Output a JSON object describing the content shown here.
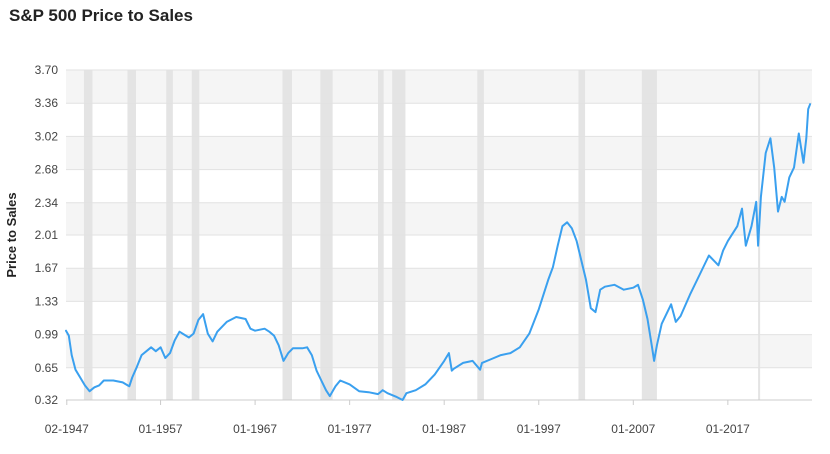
{
  "chart_data": {
    "type": "line",
    "title": "S&P 500 Price to Sales",
    "ylabel": "Price to Sales",
    "xlabel": "",
    "ylim": [
      0.32,
      3.7
    ],
    "y_ticks": [
      "0.32",
      "0.65",
      "0.99",
      "1.33",
      "1.67",
      "2.01",
      "2.34",
      "2.68",
      "3.02",
      "3.36",
      "3.70"
    ],
    "x_ticks": [
      "02-1947",
      "01-1957",
      "01-1967",
      "01-1977",
      "01-1987",
      "01-1997",
      "01-2007",
      "01-2017"
    ],
    "xlim": [
      1947.0,
      2025.9
    ],
    "recessions": [
      [
        1948.9,
        1949.8
      ],
      [
        1953.5,
        1954.4
      ],
      [
        1957.6,
        1958.3
      ],
      [
        1960.3,
        1961.1
      ],
      [
        1969.9,
        1970.9
      ],
      [
        1973.9,
        1975.2
      ],
      [
        1980.0,
        1980.6
      ],
      [
        1981.5,
        1982.9
      ],
      [
        1990.5,
        1991.2
      ],
      [
        2001.2,
        2001.9
      ],
      [
        2007.9,
        2009.5
      ],
      [
        2020.2,
        2020.4
      ]
    ],
    "series": [
      {
        "color": "#3aa0ef",
        "x": [
          1947.0,
          1947.3,
          1947.6,
          1948.0,
          1948.5,
          1949.0,
          1949.5,
          1950.0,
          1950.5,
          1951.0,
          1952.0,
          1953.0,
          1953.7,
          1954.0,
          1954.5,
          1955.0,
          1955.5,
          1956.0,
          1956.5,
          1957.0,
          1957.5,
          1958.0,
          1958.5,
          1959.0,
          1959.5,
          1960.0,
          1960.5,
          1961.0,
          1961.5,
          1962.0,
          1962.5,
          1963.0,
          1964.0,
          1965.0,
          1966.0,
          1966.5,
          1967.0,
          1968.0,
          1968.5,
          1969.0,
          1969.5,
          1970.0,
          1970.5,
          1971.0,
          1972.0,
          1972.5,
          1973.0,
          1973.5,
          1974.0,
          1974.5,
          1974.9,
          1975.5,
          1976.0,
          1977.0,
          1978.0,
          1979.0,
          1980.0,
          1980.5,
          1981.0,
          1982.0,
          1982.6,
          1983.0,
          1984.0,
          1985.0,
          1986.0,
          1987.0,
          1987.5,
          1987.8,
          1988.0,
          1989.0,
          1990.0,
          1990.8,
          1991.0,
          1992.0,
          1993.0,
          1994.0,
          1995.0,
          1996.0,
          1997.0,
          1998.0,
          1998.5,
          1999.0,
          1999.5,
          2000.0,
          2000.5,
          2001.0,
          2001.5,
          2002.0,
          2002.5,
          2003.0,
          2003.5,
          2004.0,
          2005.0,
          2006.0,
          2007.0,
          2007.5,
          2008.0,
          2008.5,
          2009.0,
          2009.2,
          2009.5,
          2010.0,
          2010.5,
          2011.0,
          2011.5,
          2012.0,
          2013.0,
          2014.0,
          2015.0,
          2015.5,
          2016.0,
          2016.5,
          2017.0,
          2018.0,
          2018.5,
          2018.9,
          2019.5,
          2020.0,
          2020.2,
          2020.5,
          2021.0,
          2021.5,
          2021.9,
          2022.3,
          2022.7,
          2023.0,
          2023.5,
          2024.0,
          2024.5,
          2025.0,
          2025.3,
          2025.5,
          2025.7
        ],
        "values": [
          1.03,
          0.98,
          0.78,
          0.63,
          0.55,
          0.47,
          0.41,
          0.45,
          0.47,
          0.52,
          0.52,
          0.5,
          0.46,
          0.55,
          0.66,
          0.78,
          0.82,
          0.86,
          0.82,
          0.86,
          0.75,
          0.8,
          0.93,
          1.02,
          0.99,
          0.96,
          1.0,
          1.14,
          1.2,
          1.0,
          0.92,
          1.02,
          1.12,
          1.17,
          1.15,
          1.05,
          1.03,
          1.05,
          1.02,
          0.98,
          0.88,
          0.72,
          0.8,
          0.85,
          0.85,
          0.86,
          0.78,
          0.62,
          0.52,
          0.42,
          0.36,
          0.46,
          0.52,
          0.48,
          0.41,
          0.4,
          0.38,
          0.42,
          0.39,
          0.35,
          0.32,
          0.39,
          0.42,
          0.48,
          0.58,
          0.72,
          0.8,
          0.62,
          0.64,
          0.7,
          0.72,
          0.63,
          0.7,
          0.74,
          0.78,
          0.8,
          0.86,
          1.0,
          1.25,
          1.55,
          1.68,
          1.9,
          2.1,
          2.14,
          2.08,
          1.95,
          1.75,
          1.55,
          1.26,
          1.22,
          1.45,
          1.48,
          1.5,
          1.45,
          1.47,
          1.5,
          1.35,
          1.15,
          0.85,
          0.72,
          0.88,
          1.1,
          1.2,
          1.3,
          1.12,
          1.18,
          1.4,
          1.6,
          1.8,
          1.75,
          1.7,
          1.85,
          1.95,
          2.1,
          2.28,
          1.9,
          2.1,
          2.35,
          1.9,
          2.4,
          2.85,
          3.0,
          2.7,
          2.25,
          2.4,
          2.35,
          2.6,
          2.7,
          3.05,
          2.75,
          3.0,
          3.3,
          3.35
        ]
      }
    ]
  }
}
